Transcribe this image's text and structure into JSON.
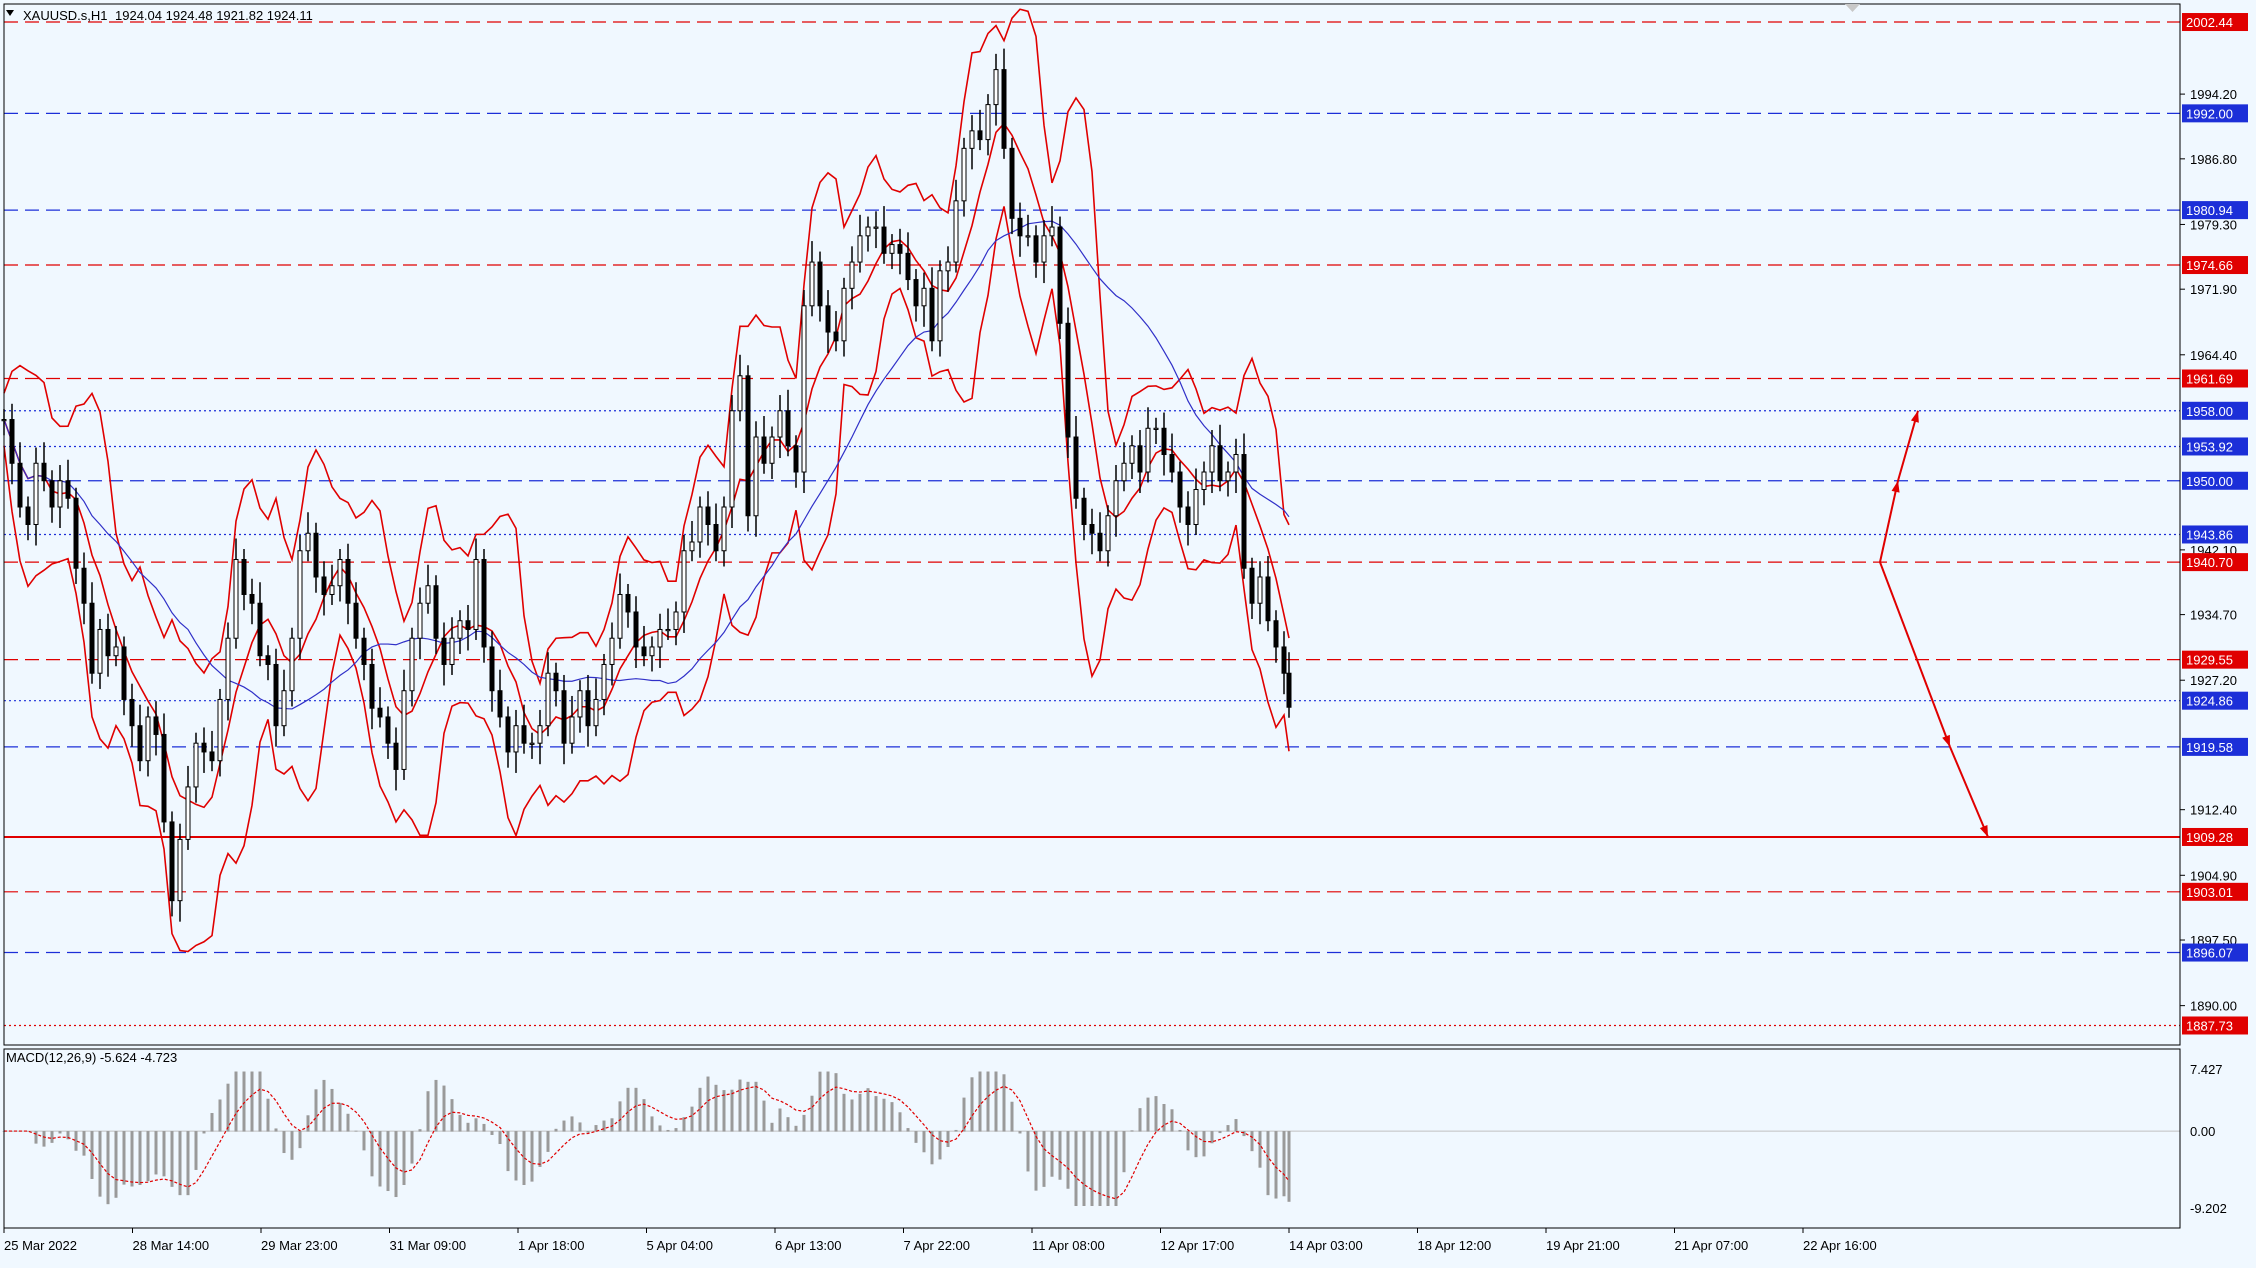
{
  "header": {
    "symbol": "XAUUSD.s,H1",
    "ohlc": "1924.04 1924.48 1921.82 1924.11"
  },
  "macd_header": "MACD(12,26,9) -5.624 -4.723",
  "chart_data": {
    "type": "candlestick",
    "title": "",
    "series": [
      {
        "name": "",
        "values": [
          [
            0,
            1957
          ],
          [
            8,
            1952
          ],
          [
            16,
            1947
          ],
          [
            24,
            1945
          ],
          [
            32,
            1952
          ],
          [
            40,
            1950
          ],
          [
            48,
            1947
          ],
          [
            56,
            1950
          ],
          [
            64,
            1948
          ],
          [
            72,
            1940
          ],
          [
            80,
            1936
          ],
          [
            88,
            1928
          ],
          [
            96,
            1933
          ],
          [
            104,
            1930
          ],
          [
            112,
            1931
          ],
          [
            120,
            1925
          ],
          [
            128,
            1922
          ],
          [
            136,
            1918
          ],
          [
            144,
            1923
          ],
          [
            152,
            1921
          ],
          [
            160,
            1911
          ],
          [
            168,
            1902
          ],
          [
            176,
            1909
          ],
          [
            184,
            1915
          ],
          [
            192,
            1920
          ],
          [
            200,
            1919
          ],
          [
            208,
            1918
          ],
          [
            216,
            1925
          ],
          [
            224,
            1932
          ],
          [
            232,
            1941
          ],
          [
            240,
            1937
          ],
          [
            248,
            1936
          ],
          [
            256,
            1930
          ],
          [
            264,
            1929
          ],
          [
            272,
            1922
          ],
          [
            280,
            1926
          ],
          [
            288,
            1932
          ],
          [
            296,
            1942
          ],
          [
            304,
            1944
          ],
          [
            312,
            1939
          ],
          [
            320,
            1937
          ],
          [
            328,
            1938
          ],
          [
            336,
            1941
          ],
          [
            344,
            1936
          ],
          [
            352,
            1932
          ],
          [
            360,
            1929
          ],
          [
            368,
            1924
          ],
          [
            376,
            1923
          ],
          [
            384,
            1920
          ],
          [
            392,
            1917
          ],
          [
            400,
            1926
          ],
          [
            408,
            1932
          ],
          [
            416,
            1936
          ],
          [
            424,
            1938
          ],
          [
            432,
            1932
          ],
          [
            440,
            1929
          ],
          [
            448,
            1932
          ],
          [
            456,
            1934
          ],
          [
            464,
            1933
          ],
          [
            472,
            1941
          ],
          [
            480,
            1931
          ],
          [
            488,
            1926
          ],
          [
            496,
            1923
          ],
          [
            504,
            1919
          ],
          [
            512,
            1922
          ],
          [
            520,
            1920
          ],
          [
            528,
            1920
          ],
          [
            536,
            1922
          ],
          [
            544,
            1928
          ],
          [
            552,
            1926
          ],
          [
            560,
            1920
          ],
          [
            568,
            1923
          ],
          [
            576,
            1926
          ],
          [
            584,
            1922
          ],
          [
            592,
            1925
          ],
          [
            600,
            1929
          ],
          [
            608,
            1932
          ],
          [
            616,
            1937
          ],
          [
            624,
            1935
          ],
          [
            632,
            1931
          ],
          [
            640,
            1930
          ],
          [
            648,
            1931
          ],
          [
            656,
            1933
          ],
          [
            664,
            1933
          ],
          [
            672,
            1935
          ],
          [
            680,
            1942
          ],
          [
            688,
            1943
          ],
          [
            696,
            1947
          ],
          [
            704,
            1945
          ],
          [
            712,
            1942
          ],
          [
            720,
            1947
          ],
          [
            728,
            1958
          ],
          [
            736,
            1962
          ],
          [
            744,
            1946
          ],
          [
            752,
            1955
          ],
          [
            760,
            1952
          ],
          [
            768,
            1955
          ],
          [
            776,
            1958
          ],
          [
            784,
            1954
          ],
          [
            792,
            1951
          ],
          [
            800,
            1970
          ],
          [
            808,
            1975
          ],
          [
            816,
            1970
          ],
          [
            824,
            1967
          ],
          [
            832,
            1966
          ],
          [
            840,
            1972
          ],
          [
            848,
            1975
          ],
          [
            856,
            1978
          ],
          [
            864,
            1979
          ],
          [
            872,
            1979
          ],
          [
            880,
            1976
          ],
          [
            888,
            1977
          ],
          [
            896,
            1976
          ],
          [
            904,
            1973
          ],
          [
            912,
            1970
          ],
          [
            920,
            1972
          ],
          [
            928,
            1966
          ],
          [
            936,
            1974
          ],
          [
            944,
            1975
          ],
          [
            952,
            1982
          ],
          [
            960,
            1988
          ],
          [
            968,
            1990
          ],
          [
            976,
            1989
          ],
          [
            984,
            1993
          ],
          [
            992,
            1997
          ],
          [
            1000,
            1988
          ],
          [
            1008,
            1980
          ],
          [
            1016,
            1978
          ],
          [
            1024,
            1978
          ],
          [
            1032,
            1975
          ],
          [
            1040,
            1978
          ],
          [
            1048,
            1979
          ],
          [
            1056,
            1968
          ],
          [
            1064,
            1955
          ],
          [
            1072,
            1948
          ],
          [
            1080,
            1945
          ],
          [
            1088,
            1944
          ],
          [
            1096,
            1942
          ],
          [
            1104,
            1946
          ],
          [
            1112,
            1950
          ],
          [
            1120,
            1952
          ],
          [
            1128,
            1954
          ],
          [
            1136,
            1951
          ],
          [
            1144,
            1956
          ],
          [
            1152,
            1956
          ],
          [
            1160,
            1953
          ],
          [
            1168,
            1951
          ],
          [
            1176,
            1947
          ],
          [
            1184,
            1945
          ],
          [
            1192,
            1949
          ],
          [
            1200,
            1951
          ],
          [
            1208,
            1954
          ],
          [
            1216,
            1950
          ],
          [
            1224,
            1951
          ],
          [
            1232,
            1953
          ],
          [
            1240,
            1940
          ],
          [
            1248,
            1936
          ],
          [
            1256,
            1939
          ],
          [
            1264,
            1934
          ],
          [
            1272,
            1931
          ],
          [
            1280,
            1928
          ],
          [
            1285,
            1924.11
          ]
        ]
      },
      {
        "name": "",
        "color": "#e00000"
      },
      {
        "name": "",
        "color": "#e00000"
      },
      {
        "name": "",
        "color": "#e00000"
      },
      {
        "name": "",
        "color": "#3030c8"
      }
    ],
    "x_ticks": [
      "25 Mar 2022",
      "28 Mar 14:00",
      "29 Mar 23:00",
      "31 Mar 09:00",
      "1 Apr 18:00",
      "5 Apr 04:00",
      "6 Apr 13:00",
      "7 Apr 22:00",
      "11 Apr 08:00",
      "12 Apr 17:00",
      "14 Apr 03:00",
      "18 Apr 12:00",
      "19 Apr 21:00",
      "21 Apr 07:00",
      "22 Apr 16:00"
    ],
    "y_ticks": [
      "1994.20",
      "1986.80",
      "1979.30",
      "1971.90",
      "1964.40",
      "1942.10",
      "1934.70",
      "1927.20",
      "1912.40",
      "1904.90",
      "1897.50",
      "1890.00"
    ],
    "ylim": [
      1885.5,
      2004.5
    ],
    "levels": [
      {
        "label": "2002.44",
        "style": "dashed",
        "color": "#e00000"
      },
      {
        "label": "1992.00",
        "style": "dashed",
        "color": "#1c2fd8"
      },
      {
        "label": "1980.94",
        "style": "dashed",
        "color": "#1c2fd8"
      },
      {
        "label": "1974.66",
        "style": "dashed",
        "color": "#e00000"
      },
      {
        "label": "1961.69",
        "style": "dashed",
        "color": "#e00000"
      },
      {
        "label": "1958.00",
        "style": "dotted",
        "color": "#1c2fd8"
      },
      {
        "label": "1953.92",
        "style": "dotted",
        "color": "#1c2fd8"
      },
      {
        "label": "1950.00",
        "style": "dashed",
        "color": "#1c2fd8"
      },
      {
        "label": "1943.86",
        "style": "dotted",
        "color": "#1c2fd8"
      },
      {
        "label": "1940.70",
        "style": "dashed",
        "color": "#e00000"
      },
      {
        "label": "1929.55",
        "style": "dashed",
        "color": "#e00000"
      },
      {
        "label": "1924.86",
        "style": "dotted",
        "color": "#1c2fd8"
      },
      {
        "label": "1919.58",
        "style": "dashed",
        "color": "#1c2fd8"
      },
      {
        "label": "1909.28",
        "style": "solid",
        "color": "#e00000"
      },
      {
        "label": "1903.01",
        "style": "dashed",
        "color": "#e00000"
      },
      {
        "label": "1896.07",
        "style": "dashed",
        "color": "#1c2fd8"
      },
      {
        "label": "1887.73",
        "style": "dotted",
        "color": "#e00000"
      }
    ],
    "macd": {
      "y_ticks": [
        "7.427",
        "0.00",
        "-9.202"
      ],
      "ylim": [
        -9.202,
        7.427
      ]
    },
    "colors": {
      "background": "#f0f8ff",
      "price": "#000000",
      "bands": "#e00000",
      "ma": "#3030c8",
      "macd_hist": "#9a9a9a",
      "macd_signal": "#e00000"
    }
  }
}
